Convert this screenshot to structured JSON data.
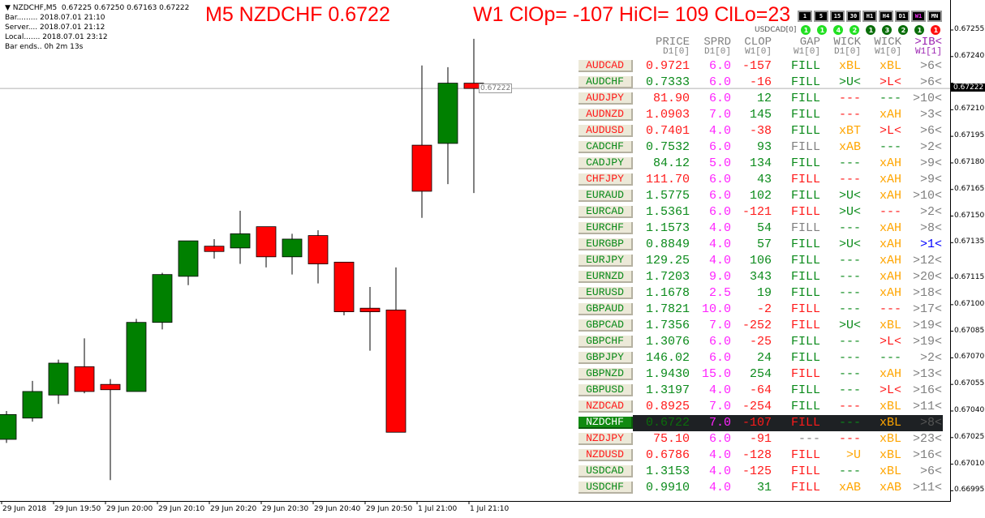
{
  "info": {
    "symbol_line": "NZDCHF,M5  0.67225 0.67250 0.67163 0.67222",
    "bar": "Bar......... 2018.07.01 21:10",
    "server": "Server.... 2018.07.01 21:12",
    "local": "Local....... 2018.07.01 23:12",
    "bar_ends": "Bar ends.. 0h 2m 13s"
  },
  "title_left": "M5 NZDCHF 0.6722",
  "title_right": "W1 ClOp= -107 HiCl= 109 ClLo=23",
  "timeframes": [
    "1",
    "5",
    "15",
    "30",
    "H1",
    "H4",
    "D1",
    "W1",
    "MN"
  ],
  "active_timeframe": "W1",
  "strength": {
    "label": "USDCAD[0]",
    "values": [
      {
        "n": "1",
        "color": "#22e022"
      },
      {
        "n": "1",
        "color": "#22e022"
      },
      {
        "n": "4",
        "color": "#22e022"
      },
      {
        "n": "2",
        "color": "#22e022"
      },
      {
        "n": "1",
        "color": "#0a6e0a"
      },
      {
        "n": "3",
        "color": "#0a6e0a"
      },
      {
        "n": "2",
        "color": "#0a6e0a"
      },
      {
        "n": "1",
        "color": "#0a6e0a"
      },
      {
        "n": "1",
        "color": "#ff1010"
      }
    ]
  },
  "colors": {
    "g": "#0a8a1a",
    "r": "#ff1a1a",
    "m": "#ff22ff",
    "o": "#ffa500",
    "s": "#808080",
    "b": "#0000ff",
    "d": "#0b6e0b",
    "bull": "#008000",
    "bear": "#ff0000"
  },
  "table": {
    "headers": [
      "PRICE",
      "SPRD",
      "CLOP",
      "GAP",
      "WICK",
      "WICK",
      ">IB<"
    ],
    "subheaders": [
      "D1[0]",
      "D1[0]",
      "W1[0]",
      "W1[0]",
      "D1[0]",
      "W1[0]",
      "W1[1]"
    ],
    "rows": [
      {
        "sym": "AUDCAD",
        "sc": "r",
        "price": "0.9721",
        "pc": "r",
        "sprd": "6.0",
        "clop": "-157",
        "cc": "r",
        "gap": "FILL",
        "gc": "g",
        "wd": "xBL",
        "wdc": "o",
        "ww": "xBL",
        "wwc": "o",
        "ib": ">6<",
        "ic": "s"
      },
      {
        "sym": "AUDCHF",
        "sc": "g",
        "price": "0.7333",
        "pc": "g",
        "sprd": "6.0",
        "clop": "-16",
        "cc": "r",
        "gap": "FILL",
        "gc": "g",
        "wd": ">U<",
        "wdc": "g",
        "ww": ">L<",
        "wwc": "r",
        "ib": ">6<",
        "ic": "s"
      },
      {
        "sym": "AUDJPY",
        "sc": "r",
        "price": "81.90",
        "pc": "r",
        "sprd": "6.0",
        "clop": "12",
        "cc": "g",
        "gap": "FILL",
        "gc": "g",
        "wd": "---",
        "wdc": "r",
        "ww": "---",
        "wwc": "g",
        "ib": ">10<",
        "ic": "s"
      },
      {
        "sym": "AUDNZD",
        "sc": "r",
        "price": "1.0903",
        "pc": "r",
        "sprd": "7.0",
        "clop": "145",
        "cc": "g",
        "gap": "FILL",
        "gc": "g",
        "wd": "---",
        "wdc": "r",
        "ww": "xAH",
        "wwc": "o",
        "ib": ">3<",
        "ic": "s"
      },
      {
        "sym": "AUDUSD",
        "sc": "r",
        "price": "0.7401",
        "pc": "r",
        "sprd": "4.0",
        "clop": "-38",
        "cc": "r",
        "gap": "FILL",
        "gc": "g",
        "wd": "xBT",
        "wdc": "o",
        "ww": ">L<",
        "wwc": "r",
        "ib": ">6<",
        "ic": "s"
      },
      {
        "sym": "CADCHF",
        "sc": "g",
        "price": "0.7532",
        "pc": "g",
        "sprd": "6.0",
        "clop": "93",
        "cc": "g",
        "gap": "FILL",
        "gc": "s",
        "wd": "xAB",
        "wdc": "o",
        "ww": "---",
        "wwc": "g",
        "ib": ">2<",
        "ic": "s"
      },
      {
        "sym": "CADJPY",
        "sc": "g",
        "price": "84.12",
        "pc": "g",
        "sprd": "5.0",
        "clop": "134",
        "cc": "g",
        "gap": "FILL",
        "gc": "g",
        "wd": "---",
        "wdc": "g",
        "ww": "xAH",
        "wwc": "o",
        "ib": ">9<",
        "ic": "s"
      },
      {
        "sym": "CHFJPY",
        "sc": "r",
        "price": "111.70",
        "pc": "r",
        "sprd": "6.0",
        "clop": "43",
        "cc": "g",
        "gap": "FILL",
        "gc": "r",
        "wd": "---",
        "wdc": "r",
        "ww": "xAH",
        "wwc": "o",
        "ib": ">9<",
        "ic": "s"
      },
      {
        "sym": "EURAUD",
        "sc": "g",
        "price": "1.5775",
        "pc": "g",
        "sprd": "6.0",
        "clop": "102",
        "cc": "g",
        "gap": "FILL",
        "gc": "g",
        "wd": ">U<",
        "wdc": "g",
        "ww": "xAH",
        "wwc": "o",
        "ib": ">10<",
        "ic": "s"
      },
      {
        "sym": "EURCAD",
        "sc": "g",
        "price": "1.5361",
        "pc": "g",
        "sprd": "6.0",
        "clop": "-121",
        "cc": "r",
        "gap": "FILL",
        "gc": "r",
        "wd": ">U<",
        "wdc": "g",
        "ww": "---",
        "wwc": "r",
        "ib": ">2<",
        "ic": "s"
      },
      {
        "sym": "EURCHF",
        "sc": "g",
        "price": "1.1573",
        "pc": "g",
        "sprd": "4.0",
        "clop": "54",
        "cc": "g",
        "gap": "FILL",
        "gc": "s",
        "wd": "---",
        "wdc": "g",
        "ww": "xAH",
        "wwc": "o",
        "ib": ">8<",
        "ic": "s"
      },
      {
        "sym": "EURGBP",
        "sc": "g",
        "price": "0.8849",
        "pc": "g",
        "sprd": "4.0",
        "clop": "57",
        "cc": "g",
        "gap": "FILL",
        "gc": "g",
        "wd": ">U<",
        "wdc": "g",
        "ww": "xAH",
        "wwc": "o",
        "ib": ">1<",
        "ic": "b"
      },
      {
        "sym": "EURJPY",
        "sc": "g",
        "price": "129.25",
        "pc": "g",
        "sprd": "4.0",
        "clop": "106",
        "cc": "g",
        "gap": "FILL",
        "gc": "g",
        "wd": "---",
        "wdc": "g",
        "ww": "xAH",
        "wwc": "o",
        "ib": ">12<",
        "ic": "s"
      },
      {
        "sym": "EURNZD",
        "sc": "g",
        "price": "1.7203",
        "pc": "g",
        "sprd": "9.0",
        "clop": "343",
        "cc": "g",
        "gap": "FILL",
        "gc": "g",
        "wd": "---",
        "wdc": "g",
        "ww": "xAH",
        "wwc": "o",
        "ib": ">20<",
        "ic": "s"
      },
      {
        "sym": "EURUSD",
        "sc": "g",
        "price": "1.1678",
        "pc": "g",
        "sprd": "2.5",
        "clop": "19",
        "cc": "g",
        "gap": "FILL",
        "gc": "g",
        "wd": "---",
        "wdc": "g",
        "ww": "xAH",
        "wwc": "o",
        "ib": ">18<",
        "ic": "s"
      },
      {
        "sym": "GBPAUD",
        "sc": "g",
        "price": "1.7821",
        "pc": "g",
        "sprd": "10.0",
        "clop": "-2",
        "cc": "r",
        "gap": "FILL",
        "gc": "r",
        "wd": "---",
        "wdc": "g",
        "ww": "---",
        "wwc": "r",
        "ib": ">17<",
        "ic": "s"
      },
      {
        "sym": "GBPCAD",
        "sc": "g",
        "price": "1.7356",
        "pc": "g",
        "sprd": "7.0",
        "clop": "-252",
        "cc": "r",
        "gap": "FILL",
        "gc": "r",
        "wd": ">U<",
        "wdc": "g",
        "ww": "xBL",
        "wwc": "o",
        "ib": ">19<",
        "ic": "s"
      },
      {
        "sym": "GBPCHF",
        "sc": "g",
        "price": "1.3076",
        "pc": "g",
        "sprd": "6.0",
        "clop": "-25",
        "cc": "r",
        "gap": "FILL",
        "gc": "g",
        "wd": "---",
        "wdc": "g",
        "ww": ">L<",
        "wwc": "r",
        "ib": ">19<",
        "ic": "s"
      },
      {
        "sym": "GBPJPY",
        "sc": "g",
        "price": "146.02",
        "pc": "g",
        "sprd": "6.0",
        "clop": "24",
        "cc": "g",
        "gap": "FILL",
        "gc": "g",
        "wd": "---",
        "wdc": "g",
        "ww": "---",
        "wwc": "g",
        "ib": ">2<",
        "ic": "s"
      },
      {
        "sym": "GBPNZD",
        "sc": "g",
        "price": "1.9430",
        "pc": "g",
        "sprd": "15.0",
        "clop": "254",
        "cc": "g",
        "gap": "FILL",
        "gc": "r",
        "wd": "---",
        "wdc": "g",
        "ww": "xAH",
        "wwc": "o",
        "ib": ">13<",
        "ic": "s"
      },
      {
        "sym": "GBPUSD",
        "sc": "g",
        "price": "1.3197",
        "pc": "g",
        "sprd": "4.0",
        "clop": "-64",
        "cc": "r",
        "gap": "FILL",
        "gc": "g",
        "wd": "---",
        "wdc": "g",
        "ww": ">L<",
        "wwc": "r",
        "ib": ">16<",
        "ic": "s"
      },
      {
        "sym": "NZDCAD",
        "sc": "r",
        "price": "0.8925",
        "pc": "r",
        "sprd": "7.0",
        "clop": "-254",
        "cc": "r",
        "gap": "FILL",
        "gc": "g",
        "wd": "---",
        "wdc": "r",
        "ww": "xBL",
        "wwc": "o",
        "ib": ">11<",
        "ic": "s"
      },
      {
        "sym": "NZDCHF",
        "sc": "g",
        "price": "0.6722",
        "pc": "d",
        "sprd": "7.0",
        "clop": "-107",
        "cc": "r",
        "gap": "FILL",
        "gc": "r",
        "wd": "---",
        "wdc": "g",
        "ww": "xBL",
        "wwc": "o",
        "ib": ">8<",
        "ic": "s",
        "selected": true
      },
      {
        "sym": "NZDJPY",
        "sc": "r",
        "price": "75.10",
        "pc": "r",
        "sprd": "6.0",
        "clop": "-91",
        "cc": "r",
        "gap": "---",
        "gc": "s",
        "wd": "---",
        "wdc": "r",
        "ww": "xBL",
        "wwc": "o",
        "ib": ">23<",
        "ic": "s"
      },
      {
        "sym": "NZDUSD",
        "sc": "r",
        "price": "0.6786",
        "pc": "r",
        "sprd": "4.0",
        "clop": "-128",
        "cc": "r",
        "gap": "FILL",
        "gc": "r",
        "wd": ">U",
        "wdc": "o",
        "ww": "xBL",
        "wwc": "o",
        "ib": ">16<",
        "ic": "s"
      },
      {
        "sym": "USDCAD",
        "sc": "g",
        "price": "1.3153",
        "pc": "g",
        "sprd": "4.0",
        "clop": "-125",
        "cc": "r",
        "gap": "FILL",
        "gc": "r",
        "wd": "---",
        "wdc": "g",
        "ww": "xBL",
        "wwc": "o",
        "ib": ">6<",
        "ic": "s"
      },
      {
        "sym": "USDCHF",
        "sc": "g",
        "price": "0.9910",
        "pc": "g",
        "sprd": "4.0",
        "clop": "31",
        "cc": "g",
        "gap": "FILL",
        "gc": "r",
        "wd": "xAB",
        "wdc": "o",
        "ww": "xAB",
        "wwc": "o",
        "ib": ">11<",
        "ic": "s"
      }
    ]
  },
  "chart_data": {
    "type": "candlestick",
    "symbol": "NZDCHF",
    "timeframe": "M5",
    "current_price": "0.67222",
    "y_ticks": [
      "0.67255",
      "0.67240",
      "0.67225",
      "0.67210",
      "0.67195",
      "0.67180",
      "0.67165",
      "0.67150",
      "0.67135",
      "0.67115",
      "0.67100",
      "0.67085",
      "0.67070",
      "0.67055",
      "0.67040",
      "0.67025",
      "0.67010",
      "0.66995"
    ],
    "x_ticks": [
      "29 Jun 2018",
      "29 Jun 19:50",
      "29 Jun 20:00",
      "29 Jun 20:10",
      "29 Jun 20:20",
      "29 Jun 20:30",
      "29 Jun 20:40",
      "29 Jun 20:50",
      "1 Jul 21:00",
      "1 Jul 21:10"
    ],
    "candles": [
      {
        "o": 0.67024,
        "h": 0.6704,
        "l": 0.67022,
        "c": 0.67038
      },
      {
        "o": 0.67036,
        "h": 0.67057,
        "l": 0.67034,
        "c": 0.67051
      },
      {
        "o": 0.67049,
        "h": 0.67069,
        "l": 0.67044,
        "c": 0.67067
      },
      {
        "o": 0.67065,
        "h": 0.67081,
        "l": 0.6705,
        "c": 0.67051
      },
      {
        "o": 0.67055,
        "h": 0.67058,
        "l": 0.67001,
        "c": 0.67052
      },
      {
        "o": 0.67051,
        "h": 0.67092,
        "l": 0.67051,
        "c": 0.6709
      },
      {
        "o": 0.6709,
        "h": 0.67118,
        "l": 0.67086,
        "c": 0.67117
      },
      {
        "o": 0.67116,
        "h": 0.67136,
        "l": 0.67111,
        "c": 0.67136
      },
      {
        "o": 0.67133,
        "h": 0.67137,
        "l": 0.67126,
        "c": 0.6713
      },
      {
        "o": 0.67132,
        "h": 0.67153,
        "l": 0.67123,
        "c": 0.6714
      },
      {
        "o": 0.67144,
        "h": 0.67144,
        "l": 0.67121,
        "c": 0.67127
      },
      {
        "o": 0.67127,
        "h": 0.6714,
        "l": 0.67117,
        "c": 0.67137
      },
      {
        "o": 0.67139,
        "h": 0.67142,
        "l": 0.67112,
        "c": 0.67123
      },
      {
        "o": 0.67124,
        "h": 0.67124,
        "l": 0.67094,
        "c": 0.67096
      },
      {
        "o": 0.67098,
        "h": 0.6711,
        "l": 0.67074,
        "c": 0.67096
      },
      {
        "o": 0.67097,
        "h": 0.67121,
        "l": 0.67028,
        "c": 0.67028
      },
      {
        "o": 0.6719,
        "h": 0.67235,
        "l": 0.67149,
        "c": 0.67164
      },
      {
        "o": 0.67191,
        "h": 0.67234,
        "l": 0.67168,
        "c": 0.67225
      },
      {
        "o": 0.67225,
        "h": 0.6725,
        "l": 0.67163,
        "c": 0.67222
      }
    ]
  }
}
